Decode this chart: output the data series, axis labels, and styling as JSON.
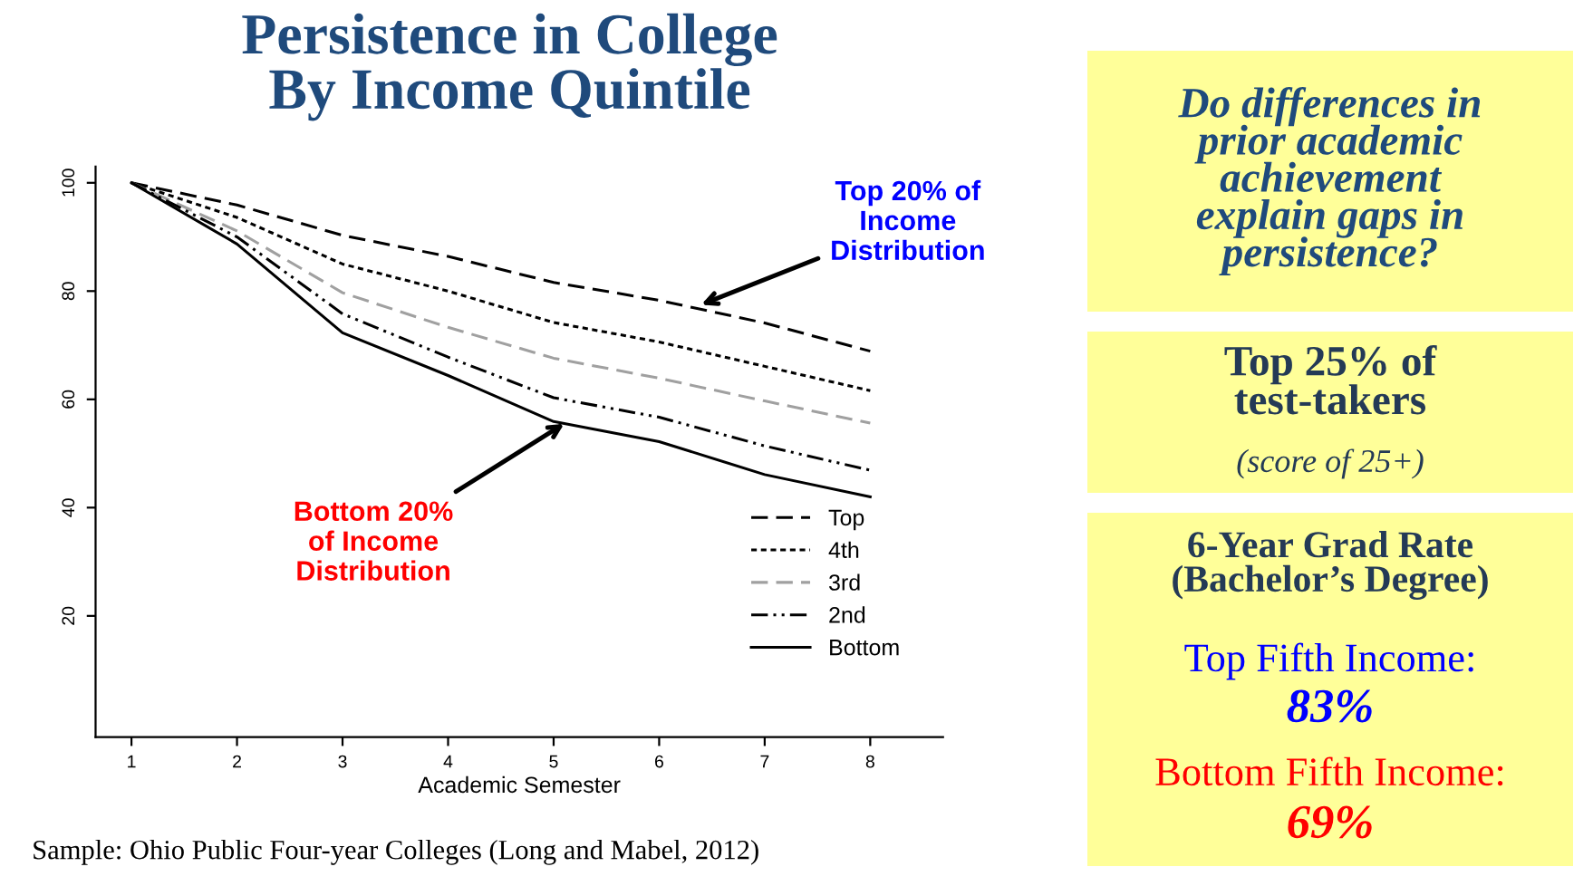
{
  "chart_data": {
    "type": "line",
    "title": "Persistence in College\nBy Income Quintile",
    "xlabel": "Academic Semester",
    "x": [
      1,
      2,
      3,
      4,
      5,
      6,
      7,
      8
    ],
    "xlim": [
      0.66,
      8.69
    ],
    "xticks": [
      1,
      2,
      3,
      4,
      5,
      6,
      7,
      8
    ],
    "ylim": [
      -2.4,
      103
    ],
    "yticks": [
      20,
      40,
      60,
      80,
      100
    ],
    "grid": false,
    "legend": "bottom right",
    "series": [
      {
        "name": "Top",
        "color": "#000000",
        "line_style": "dashed",
        "values": [
          100,
          95.9,
          90.3,
          86.4,
          81.6,
          78.3,
          74.1,
          68.9
        ]
      },
      {
        "name": "4th",
        "color": "#000000",
        "line_style": "dotted",
        "values": [
          100,
          93.6,
          85,
          80,
          74.2,
          70.6,
          66.1,
          61.6
        ]
      },
      {
        "name": "3rd",
        "color": "#a0a0a0",
        "line_style": "dashed",
        "values": [
          100,
          91.1,
          79.7,
          73.3,
          67.6,
          63.9,
          59.7,
          55.6
        ]
      },
      {
        "name": "2nd",
        "color": "#000000",
        "line_style": "dashdot",
        "values": [
          100,
          90,
          75.8,
          67.8,
          60.3,
          56.7,
          51.4,
          46.9
        ]
      },
      {
        "name": "Bottom",
        "color": "#000000",
        "line_style": "solid",
        "values": [
          100,
          88.7,
          72.3,
          64.4,
          55.9,
          52.2,
          46.1,
          42
        ]
      }
    ],
    "annotations": [
      {
        "text": "Top 20% of\nIncome\nDistribution",
        "x": 6.4,
        "y": 77.5
      },
      {
        "text": "Bottom 20%\nof Income\nDistribution",
        "x": 5.1,
        "y": 55.5
      },
      "Sample: Ohio Public Four-year Colleges (Long and Mabel, 2012)",
      "Do differences in\nprior academic\nachievement\nexplain gaps in\npersistence?",
      "Top 25% of\ntest-takers",
      "(score of 25+)",
      "6-Year Grad Rate\n(Bachelor’s Degree)",
      "Top Fifth Income:",
      "83%",
      "Bottom Fifth Income:",
      "69%"
    ]
  }
}
